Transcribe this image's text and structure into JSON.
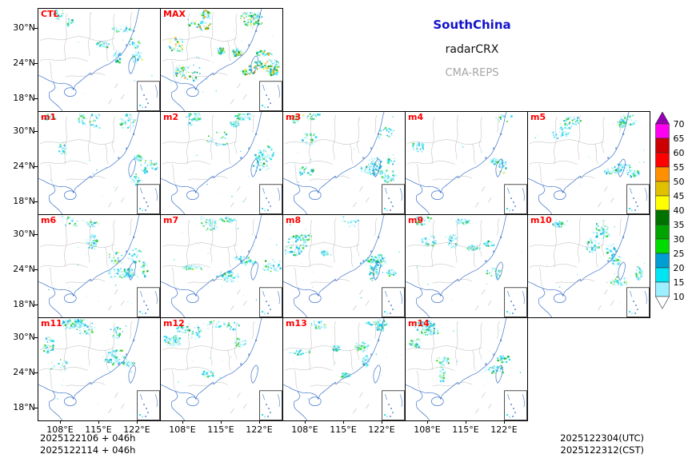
{
  "header": {
    "region_label": "SouthChina",
    "product_label": "radarCRX",
    "system_label": "CMA-REPS"
  },
  "colors": {
    "region_text": "#1111cc",
    "system_text": "#a6a6a6",
    "panel_label": "#ff0000",
    "coastline": "#3f74c8",
    "province_border": "#b6b6b6"
  },
  "axes": {
    "lat_tick_labels": [
      "30°N",
      "24°N",
      "18°N"
    ],
    "lon_tick_labels": [
      "108°E",
      "115°E",
      "122°E"
    ]
  },
  "colorbar": {
    "tick_labels": [
      "70",
      "65",
      "60",
      "55",
      "50",
      "45",
      "40",
      "35",
      "30",
      "25",
      "20",
      "15",
      "10"
    ],
    "band_colors_top_to_bottom": [
      "#FF00F0",
      "#CC0000",
      "#FF0000",
      "#FF9000",
      "#E0C000",
      "#FFFF00",
      "#007200",
      "#00A400",
      "#00DC00",
      "#009ED2",
      "#00E4F4",
      "#9CF0FF"
    ],
    "over_arrow_color": "#9600B4",
    "under_arrow_color": "#FFFFFF"
  },
  "echo_colors": [
    "#bdf3fc",
    "#84eaf6",
    "#1fd9ee",
    "#15b0dc",
    "#37d837",
    "#00a800",
    "#f2ef3a",
    "#ff9e00"
  ],
  "panels": [
    {
      "label": "CTL",
      "row": 0,
      "col": 0,
      "density": 0.75,
      "seed": 11
    },
    {
      "label": "MAX",
      "row": 0,
      "col": 1,
      "density": 1.8,
      "seed": 12
    },
    {
      "label": "m1",
      "row": 1,
      "col": 0,
      "density": 0.8,
      "seed": 21
    },
    {
      "label": "m2",
      "row": 1,
      "col": 1,
      "density": 1.0,
      "seed": 22
    },
    {
      "label": "m3",
      "row": 1,
      "col": 2,
      "density": 1.2,
      "seed": 23
    },
    {
      "label": "m4",
      "row": 1,
      "col": 3,
      "density": 0.35,
      "seed": 24
    },
    {
      "label": "m5",
      "row": 1,
      "col": 4,
      "density": 0.9,
      "seed": 25
    },
    {
      "label": "m6",
      "row": 2,
      "col": 0,
      "density": 0.95,
      "seed": 26
    },
    {
      "label": "m7",
      "row": 2,
      "col": 1,
      "density": 1.05,
      "seed": 27
    },
    {
      "label": "m8",
      "row": 2,
      "col": 2,
      "density": 1.1,
      "seed": 28
    },
    {
      "label": "m9",
      "row": 2,
      "col": 3,
      "density": 0.8,
      "seed": 29
    },
    {
      "label": "m10",
      "row": 2,
      "col": 4,
      "density": 0.95,
      "seed": 30
    },
    {
      "label": "m11",
      "row": 3,
      "col": 0,
      "density": 1.0,
      "seed": 31
    },
    {
      "label": "m12",
      "row": 3,
      "col": 1,
      "density": 0.85,
      "seed": 32
    },
    {
      "label": "m13",
      "row": 3,
      "col": 2,
      "density": 0.95,
      "seed": 33
    },
    {
      "label": "m14",
      "row": 3,
      "col": 3,
      "density": 0.9,
      "seed": 34
    }
  ],
  "footer": {
    "init_line1": "2025122106 + 046h",
    "init_line2": "2025122114 + 046h",
    "valid_utc": "2025122304(UTC)",
    "valid_cst": "2025122312(CST)"
  }
}
